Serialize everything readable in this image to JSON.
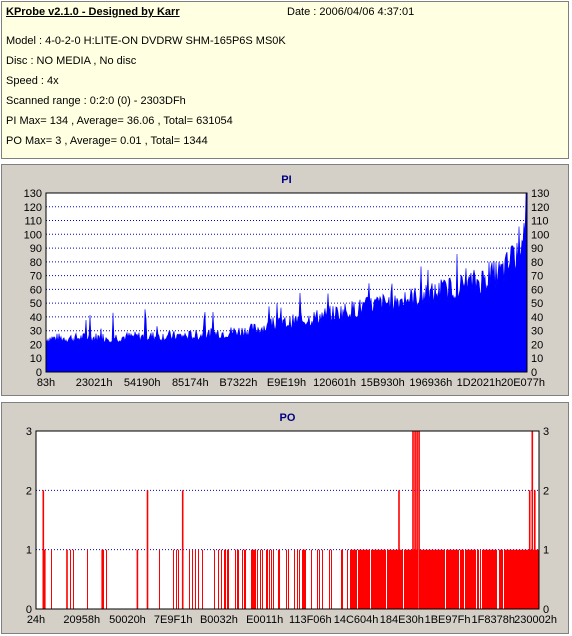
{
  "header": {
    "title": "KProbe v2.1.0 - Designed by Karr",
    "date": "Date : 2006/04/06 4:37:01",
    "model": "Model : 4-0-2-0 H:LITE-ON DVDRW SHM-165P6S MS0K",
    "disc": "Disc : NO MEDIA , No disc",
    "speed": "Speed : 4x",
    "range": "Scanned range : 0:2:0 (0) - 2303DFh",
    "pi_stats": "PI Max= 134 , Average= 36.06 , Total= 631054",
    "po_stats": "PO Max= 3 , Average= 0.01 , Total= 1344"
  },
  "colors": {
    "pi": "#0000ff",
    "po": "#ff0000",
    "grid": "#0000cc"
  },
  "chart_data": [
    {
      "type": "bar",
      "title": "PI",
      "ylim": [
        0,
        130
      ],
      "yticks": [
        0,
        10,
        20,
        30,
        40,
        50,
        60,
        70,
        80,
        90,
        100,
        110,
        120,
        130
      ],
      "xticks": [
        "83h",
        "23021h",
        "54190h",
        "85174h",
        "B7322h",
        "E9E19h",
        "120601h",
        "15B930h",
        "196936h",
        "1D2021h",
        "20E077h"
      ],
      "grid": true,
      "trend": {
        "x": [
          0,
          0.15,
          0.3,
          0.42,
          0.55,
          0.68,
          0.8,
          0.9,
          0.95,
          0.98,
          1.0
        ],
        "y": [
          25,
          26,
          27,
          31,
          40,
          50,
          58,
          68,
          75,
          90,
          120
        ]
      },
      "max": 134,
      "average": 36.06
    },
    {
      "type": "bar",
      "title": "PO",
      "ylim": [
        0,
        3
      ],
      "yticks": [
        0,
        1,
        2,
        3
      ],
      "xticks": [
        "24h",
        "20958h",
        "50020h",
        "7E9F1h",
        "B0032h",
        "E0011h",
        "113F06h",
        "14C604h",
        "184E30h",
        "1BE97Fh",
        "1F8378h",
        "230002h"
      ],
      "grid": true,
      "dense_from": 0.63,
      "spikes": [
        {
          "x": 0.013,
          "v": 2
        },
        {
          "x": 0.016,
          "v": 1
        },
        {
          "x": 0.06,
          "v": 1
        },
        {
          "x": 0.13,
          "v": 1
        },
        {
          "x": 0.2,
          "v": 1
        },
        {
          "x": 0.22,
          "v": 2
        },
        {
          "x": 0.29,
          "v": 2
        },
        {
          "x": 0.72,
          "v": 2
        },
        {
          "x": 0.748,
          "v": 3
        },
        {
          "x": 0.752,
          "v": 3
        },
        {
          "x": 0.756,
          "v": 3
        },
        {
          "x": 0.76,
          "v": 3
        },
        {
          "x": 0.985,
          "v": 3
        },
        {
          "x": 0.98,
          "v": 2
        },
        {
          "x": 0.99,
          "v": 2
        }
      ],
      "max": 3,
      "average": 0.01
    }
  ]
}
